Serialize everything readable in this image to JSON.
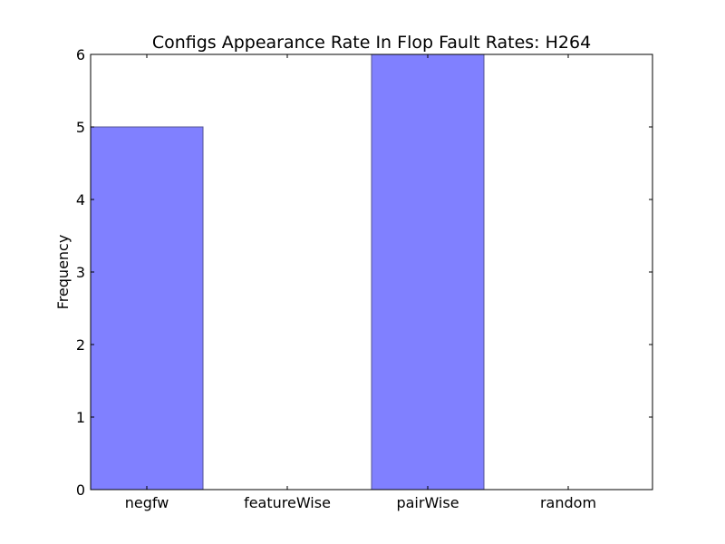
{
  "chart_data": {
    "type": "bar",
    "title": "Configs Appearance Rate In Flop Fault Rates: H264",
    "xlabel": "",
    "ylabel": "Frequency",
    "categories": [
      "negfw",
      "featureWise",
      "pairWise",
      "random"
    ],
    "values": [
      5,
      0,
      6,
      0
    ],
    "ylim": [
      0,
      6
    ],
    "yticks": [
      0,
      1,
      2,
      3,
      4,
      5,
      6
    ],
    "grid": false,
    "legend": "none",
    "bar_color": "#8080ff",
    "bar_edge_color": "#545493"
  }
}
